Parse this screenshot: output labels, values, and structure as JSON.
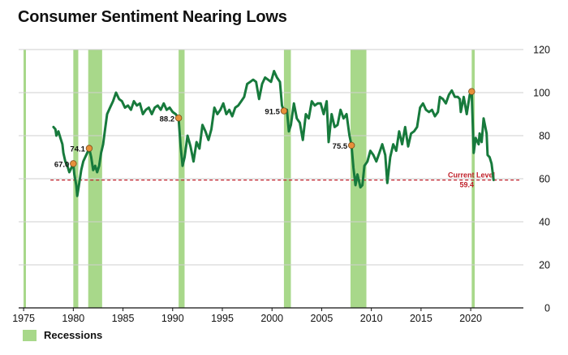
{
  "colors": {
    "line": "#177a3c",
    "recession": "#a8d88a",
    "marker": "#e8903a",
    "reference": "#c0202a",
    "grid": "#cfcfcf"
  },
  "chart_data": {
    "type": "line",
    "title": "Consumer Sentiment Nearing Lows",
    "x_ticks": [
      1975,
      1980,
      1985,
      1990,
      1995,
      2000,
      2005,
      2010,
      2015,
      2020
    ],
    "y_ticks": [
      0,
      20,
      40,
      60,
      80,
      100,
      120
    ],
    "xlim": [
      1974.5,
      2025.3
    ],
    "ylim": [
      0,
      120
    ],
    "y_axis_side": "right",
    "grid": "horizontal",
    "recessions": [
      {
        "start": 1973.9,
        "end": 1975.2
      },
      {
        "start": 1980.0,
        "end": 1980.5
      },
      {
        "start": 1981.5,
        "end": 1982.9
      },
      {
        "start": 1990.6,
        "end": 1991.2
      },
      {
        "start": 2001.2,
        "end": 2001.9
      },
      {
        "start": 2007.9,
        "end": 2009.5
      },
      {
        "start": 2020.1,
        "end": 2020.4
      }
    ],
    "series": [
      {
        "values": [
          [
            1978.0,
            84
          ],
          [
            1978.2,
            83
          ],
          [
            1978.3,
            80
          ],
          [
            1978.5,
            82
          ],
          [
            1978.7,
            79
          ],
          [
            1978.9,
            76
          ],
          [
            1979.0,
            72
          ],
          [
            1979.2,
            68
          ],
          [
            1979.4,
            66
          ],
          [
            1979.6,
            63
          ],
          [
            1979.8,
            65
          ],
          [
            1980.0,
            67.0
          ],
          [
            1980.1,
            62
          ],
          [
            1980.3,
            57
          ],
          [
            1980.4,
            52
          ],
          [
            1980.6,
            58
          ],
          [
            1980.8,
            64
          ],
          [
            1981.0,
            68
          ],
          [
            1981.2,
            70
          ],
          [
            1981.4,
            72
          ],
          [
            1981.6,
            74.1
          ],
          [
            1981.8,
            70
          ],
          [
            1982.0,
            64
          ],
          [
            1982.2,
            66
          ],
          [
            1982.4,
            63
          ],
          [
            1982.6,
            66
          ],
          [
            1982.8,
            72
          ],
          [
            1983.0,
            76
          ],
          [
            1983.2,
            83
          ],
          [
            1983.4,
            90
          ],
          [
            1983.7,
            93
          ],
          [
            1984.0,
            96
          ],
          [
            1984.3,
            100
          ],
          [
            1984.6,
            97
          ],
          [
            1984.9,
            96
          ],
          [
            1985.2,
            93
          ],
          [
            1985.5,
            94
          ],
          [
            1985.8,
            92
          ],
          [
            1986.1,
            96
          ],
          [
            1986.4,
            94
          ],
          [
            1986.7,
            95
          ],
          [
            1987.0,
            90
          ],
          [
            1987.3,
            92
          ],
          [
            1987.6,
            93
          ],
          [
            1987.9,
            90
          ],
          [
            1988.2,
            93
          ],
          [
            1988.5,
            94
          ],
          [
            1988.8,
            92
          ],
          [
            1989.1,
            95
          ],
          [
            1989.4,
            92
          ],
          [
            1989.7,
            93
          ],
          [
            1990.0,
            91
          ],
          [
            1990.3,
            90
          ],
          [
            1990.6,
            88.2
          ],
          [
            1990.8,
            75
          ],
          [
            1991.0,
            66
          ],
          [
            1991.2,
            70
          ],
          [
            1991.5,
            80
          ],
          [
            1991.8,
            75
          ],
          [
            1992.1,
            68
          ],
          [
            1992.4,
            77
          ],
          [
            1992.7,
            74
          ],
          [
            1993.0,
            85
          ],
          [
            1993.3,
            82
          ],
          [
            1993.6,
            78
          ],
          [
            1993.9,
            83
          ],
          [
            1994.2,
            93
          ],
          [
            1994.5,
            90
          ],
          [
            1994.8,
            92
          ],
          [
            1995.1,
            95
          ],
          [
            1995.4,
            90
          ],
          [
            1995.7,
            92
          ],
          [
            1996.0,
            89
          ],
          [
            1996.3,
            93
          ],
          [
            1996.6,
            94
          ],
          [
            1996.9,
            96
          ],
          [
            1997.2,
            98
          ],
          [
            1997.5,
            104
          ],
          [
            1997.8,
            105
          ],
          [
            1998.1,
            106
          ],
          [
            1998.4,
            105
          ],
          [
            1998.7,
            97
          ],
          [
            1999.0,
            104
          ],
          [
            1999.3,
            107
          ],
          [
            1999.6,
            106
          ],
          [
            1999.9,
            105
          ],
          [
            2000.2,
            110
          ],
          [
            2000.5,
            107
          ],
          [
            2000.8,
            105
          ],
          [
            2001.0,
            94
          ],
          [
            2001.2,
            91.5
          ],
          [
            2001.5,
            92
          ],
          [
            2001.7,
            82
          ],
          [
            2001.9,
            85
          ],
          [
            2002.2,
            95
          ],
          [
            2002.5,
            88
          ],
          [
            2002.8,
            86
          ],
          [
            2003.1,
            78
          ],
          [
            2003.4,
            90
          ],
          [
            2003.7,
            88
          ],
          [
            2004.0,
            96
          ],
          [
            2004.3,
            94
          ],
          [
            2004.6,
            95
          ],
          [
            2004.9,
            95
          ],
          [
            2005.2,
            90
          ],
          [
            2005.5,
            96
          ],
          [
            2005.7,
            77
          ],
          [
            2006.0,
            90
          ],
          [
            2006.3,
            84
          ],
          [
            2006.6,
            85
          ],
          [
            2006.9,
            92
          ],
          [
            2007.2,
            88
          ],
          [
            2007.5,
            90
          ],
          [
            2007.8,
            80
          ],
          [
            2008.0,
            75.5
          ],
          [
            2008.2,
            65
          ],
          [
            2008.4,
            57
          ],
          [
            2008.6,
            62
          ],
          [
            2008.9,
            56
          ],
          [
            2009.1,
            57
          ],
          [
            2009.3,
            66
          ],
          [
            2009.6,
            68
          ],
          [
            2009.9,
            73
          ],
          [
            2010.2,
            71
          ],
          [
            2010.5,
            68
          ],
          [
            2010.8,
            72
          ],
          [
            2011.1,
            76
          ],
          [
            2011.4,
            71
          ],
          [
            2011.6,
            58
          ],
          [
            2011.9,
            70
          ],
          [
            2012.2,
            76
          ],
          [
            2012.5,
            73
          ],
          [
            2012.8,
            82
          ],
          [
            2013.1,
            76
          ],
          [
            2013.4,
            84
          ],
          [
            2013.7,
            75
          ],
          [
            2014.0,
            81
          ],
          [
            2014.3,
            82
          ],
          [
            2014.6,
            84
          ],
          [
            2014.9,
            93
          ],
          [
            2015.2,
            95
          ],
          [
            2015.5,
            92
          ],
          [
            2015.8,
            91
          ],
          [
            2016.1,
            92
          ],
          [
            2016.4,
            89
          ],
          [
            2016.7,
            91
          ],
          [
            2016.9,
            98
          ],
          [
            2017.2,
            97
          ],
          [
            2017.5,
            95
          ],
          [
            2017.8,
            99
          ],
          [
            2018.1,
            101
          ],
          [
            2018.4,
            98
          ],
          [
            2018.7,
            98
          ],
          [
            2018.9,
            97
          ],
          [
            2019.0,
            91
          ],
          [
            2019.3,
            98
          ],
          [
            2019.6,
            90
          ],
          [
            2019.9,
            99
          ],
          [
            2020.1,
            100.5
          ],
          [
            2020.3,
            72
          ],
          [
            2020.5,
            79
          ],
          [
            2020.8,
            76
          ],
          [
            2020.9,
            81
          ],
          [
            2021.1,
            77
          ],
          [
            2021.3,
            88
          ],
          [
            2021.6,
            81
          ],
          [
            2021.7,
            71
          ],
          [
            2021.9,
            70
          ],
          [
            2022.1,
            67
          ],
          [
            2022.3,
            59.4
          ]
        ]
      }
    ],
    "highlighted_points": [
      {
        "x": 1980.0,
        "y": 67.0,
        "label": "67.0"
      },
      {
        "x": 1981.6,
        "y": 74.1,
        "label": "74.1"
      },
      {
        "x": 1990.6,
        "y": 88.2,
        "label": "88.2"
      },
      {
        "x": 2001.2,
        "y": 91.5,
        "label": "91.5"
      },
      {
        "x": 2008.0,
        "y": 75.5,
        "label": "75.5"
      },
      {
        "x": 2020.1,
        "y": 100.5,
        "label": ""
      }
    ],
    "reference_line": {
      "y": 59.4,
      "x_start": 1977.7,
      "label": "Current Level",
      "value_label": "59.4"
    },
    "legend": {
      "label": "Recessions",
      "position": "bottom-left"
    }
  }
}
